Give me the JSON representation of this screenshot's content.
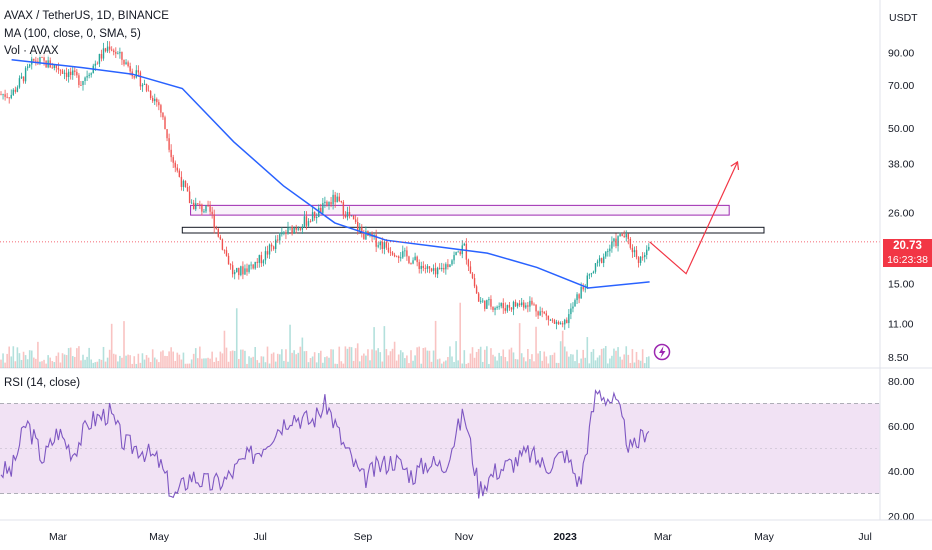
{
  "header": {
    "symbol_line": "AVAX / TetherUS, 1D, BINANCE",
    "ma_line": "MA (100, close, 0, SMA, 5)",
    "vol_line": "Vol · AVAX",
    "currency": "USDT"
  },
  "price_tag": {
    "last": "20.73",
    "countdown": "16:23:38"
  },
  "rsi_panel": {
    "title": "RSI (14, close)"
  },
  "colors": {
    "up": "#26a69a",
    "down": "#ef5350",
    "ma": "#2962ff",
    "rsi": "#7e57c2",
    "rsi_band": "#e1bee7",
    "zone": "#9c27b0",
    "projection": "#f23645",
    "axis_bg": "#ffffff"
  },
  "icons": {
    "lightning": "lightning-icon"
  },
  "chart_data": [
    {
      "type": "candlestick",
      "title": "AVAX / TetherUS, 1D, BINANCE",
      "x_labels": [
        "Mar",
        "May",
        "Jul",
        "Sep",
        "Nov",
        "2023",
        "Mar",
        "May",
        "Jul"
      ],
      "y_scale": "log",
      "y_ticks": [
        90.0,
        70.0,
        50.0,
        38.0,
        26.0,
        15.0,
        11.0,
        8.5
      ],
      "y_tick_labels": [
        "90.00",
        "70.00",
        "50.00",
        "38.00",
        "26.00",
        "15.00",
        "11.00",
        "8.50"
      ],
      "last_price": 20.73,
      "close_path": [
        {
          "date": "2022-02-01",
          "price": 65
        },
        {
          "date": "2022-02-15",
          "price": 85
        },
        {
          "date": "2022-03-01",
          "price": 80
        },
        {
          "date": "2022-03-15",
          "price": 72
        },
        {
          "date": "2022-04-01",
          "price": 95
        },
        {
          "date": "2022-04-15",
          "price": 78
        },
        {
          "date": "2022-05-01",
          "price": 60
        },
        {
          "date": "2022-05-10",
          "price": 38
        },
        {
          "date": "2022-05-20",
          "price": 28
        },
        {
          "date": "2022-06-01",
          "price": 26
        },
        {
          "date": "2022-06-15",
          "price": 16
        },
        {
          "date": "2022-07-01",
          "price": 18
        },
        {
          "date": "2022-07-15",
          "price": 22
        },
        {
          "date": "2022-08-01",
          "price": 25
        },
        {
          "date": "2022-08-15",
          "price": 29
        },
        {
          "date": "2022-09-01",
          "price": 22
        },
        {
          "date": "2022-09-15",
          "price": 20
        },
        {
          "date": "2022-10-01",
          "price": 18
        },
        {
          "date": "2022-10-15",
          "price": 16
        },
        {
          "date": "2022-11-01",
          "price": 20
        },
        {
          "date": "2022-11-10",
          "price": 13
        },
        {
          "date": "2022-11-25",
          "price": 12.5
        },
        {
          "date": "2022-12-10",
          "price": 13
        },
        {
          "date": "2022-12-30",
          "price": 10.5
        },
        {
          "date": "2023-01-10",
          "price": 14
        },
        {
          "date": "2023-01-25",
          "price": 19
        },
        {
          "date": "2023-02-05",
          "price": 22
        },
        {
          "date": "2023-02-15",
          "price": 18
        },
        {
          "date": "2023-02-21",
          "price": 20.73
        }
      ],
      "ma_100": [
        {
          "date": "2022-02-01",
          "price": 85
        },
        {
          "date": "2022-03-15",
          "price": 80
        },
        {
          "date": "2022-04-15",
          "price": 76
        },
        {
          "date": "2022-05-15",
          "price": 68
        },
        {
          "date": "2022-06-15",
          "price": 45
        },
        {
          "date": "2022-07-15",
          "price": 32
        },
        {
          "date": "2022-08-15",
          "price": 24
        },
        {
          "date": "2022-09-15",
          "price": 21
        },
        {
          "date": "2022-10-15",
          "price": 20
        },
        {
          "date": "2022-11-15",
          "price": 19
        },
        {
          "date": "2022-12-15",
          "price": 17
        },
        {
          "date": "2023-01-15",
          "price": 14.5
        },
        {
          "date": "2023-02-21",
          "price": 15.2
        }
      ],
      "zones": [
        {
          "name": "upper-zone",
          "from_date": "2022-05-20",
          "to_date": "2023-04-10",
          "low": 25.5,
          "high": 27.5
        },
        {
          "name": "lower-zone",
          "from_date": "2022-05-15",
          "to_date": "2023-05-01",
          "low": 22.2,
          "high": 23.2
        }
      ],
      "projection": [
        {
          "date": "2023-02-21",
          "price": 20.73
        },
        {
          "date": "2023-03-15",
          "price": 16.2
        },
        {
          "date": "2023-04-15",
          "price": 38.5
        }
      ]
    },
    {
      "type": "line",
      "title": "RSI (14, close)",
      "y_ticks": [
        80,
        60,
        40,
        20
      ],
      "y_tick_labels": [
        "80.00",
        "60.00",
        "40.00",
        "20.00"
      ],
      "band": [
        30,
        70
      ],
      "x_dates": [
        "2022-02-01",
        "2022-02-10",
        "2022-02-20",
        "2022-03-01",
        "2022-03-10",
        "2022-03-20",
        "2022-04-01",
        "2022-04-10",
        "2022-04-20",
        "2022-05-01",
        "2022-05-10",
        "2022-05-20",
        "2022-06-01",
        "2022-06-10",
        "2022-06-20",
        "2022-07-01",
        "2022-07-10",
        "2022-07-20",
        "2022-08-01",
        "2022-08-10",
        "2022-08-20",
        "2022-09-01",
        "2022-09-10",
        "2022-09-20",
        "2022-10-01",
        "2022-10-10",
        "2022-10-20",
        "2022-11-01",
        "2022-11-10",
        "2022-11-20",
        "2022-12-01",
        "2022-12-10",
        "2022-12-20",
        "2023-01-01",
        "2023-01-10",
        "2023-01-20",
        "2023-02-01",
        "2023-02-10",
        "2023-02-21"
      ],
      "values": [
        40,
        62,
        45,
        58,
        48,
        62,
        66,
        52,
        50,
        44,
        28,
        38,
        34,
        36,
        44,
        50,
        58,
        65,
        62,
        70,
        52,
        36,
        42,
        45,
        38,
        44,
        42,
        66,
        32,
        40,
        44,
        48,
        42,
        48,
        34,
        76,
        70,
        48,
        61
      ]
    }
  ]
}
